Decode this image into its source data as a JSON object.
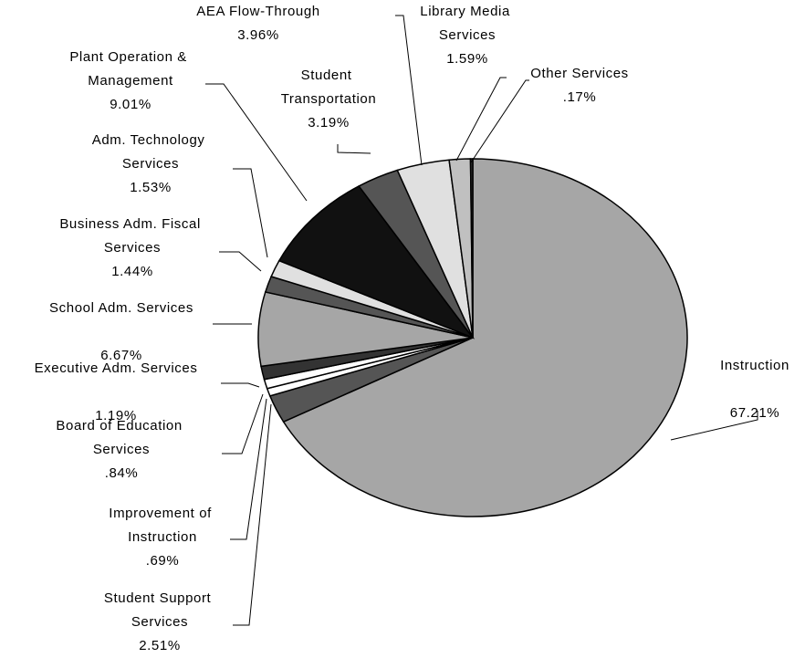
{
  "chart_data": {
    "type": "pie",
    "categories": [
      "Instruction",
      "Student Support Services",
      "Improvement of Instruction",
      "Board of Education Services",
      "Executive Adm. Services",
      "School Adm. Services",
      "Business Adm. Fiscal Services",
      "Adm. Technology Services",
      "Plant Operation & Management",
      "Student Transportation",
      "AEA Flow-Through",
      "Library Media Services",
      "Other Services"
    ],
    "values": [
      67.21,
      2.51,
      0.69,
      0.84,
      1.19,
      6.67,
      1.44,
      1.53,
      9.01,
      3.19,
      3.96,
      1.59,
      0.17
    ],
    "value_labels": [
      "67.21%",
      "2.51%",
      ".69%",
      ".84%",
      "1.19%",
      "6.67%",
      "1.44%",
      "1.53%",
      "9.01%",
      "3.19%",
      "3.96%",
      "1.59%",
      ".17%"
    ],
    "colors": [
      "#a6a6a6",
      "#555555",
      "#ffffff",
      "#ffffff",
      "#333333",
      "#a6a6a6",
      "#555555",
      "#e0e0e0",
      "#111111",
      "#555555",
      "#e0e0e0",
      "#c0c0c0",
      "#333333"
    ]
  }
}
